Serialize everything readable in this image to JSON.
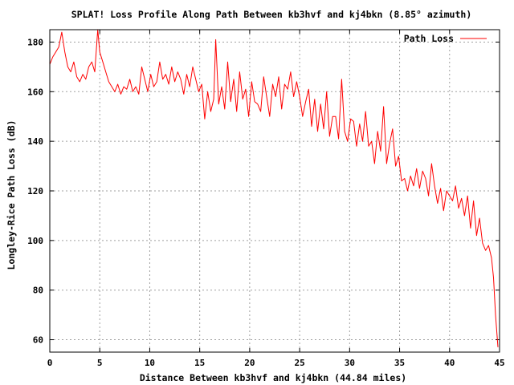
{
  "chart_data": {
    "type": "line",
    "title": "SPLAT! Loss Profile Along Path Between kb3hvf and kj4bkn (8.85° azimuth)",
    "xlabel": "Distance Between kb3hvf and kj4bkn (44.84 miles)",
    "ylabel": "Longley-Rice Path Loss (dB)",
    "xlim": [
      0,
      45
    ],
    "ylim": [
      55,
      185
    ],
    "xticks": [
      0,
      5,
      10,
      15,
      20,
      25,
      30,
      35,
      40,
      45
    ],
    "yticks": [
      60,
      80,
      100,
      120,
      140,
      160,
      180
    ],
    "grid": true,
    "legend_position": "top-right",
    "series": [
      {
        "name": "Path Loss",
        "color": "#ff0000",
        "x": [
          0,
          0.3,
          0.6,
          0.9,
          1.2,
          1.5,
          1.8,
          2.1,
          2.4,
          2.7,
          3.0,
          3.3,
          3.6,
          3.9,
          4.2,
          4.5,
          4.8,
          5.0,
          5.3,
          5.6,
          5.9,
          6.2,
          6.5,
          6.8,
          7.1,
          7.4,
          7.7,
          8.0,
          8.3,
          8.6,
          8.9,
          9.2,
          9.5,
          9.8,
          10.1,
          10.4,
          10.7,
          11.0,
          11.3,
          11.6,
          11.9,
          12.2,
          12.5,
          12.8,
          13.1,
          13.4,
          13.7,
          14.0,
          14.3,
          14.6,
          14.9,
          15.2,
          15.5,
          15.8,
          16.1,
          16.4,
          16.6,
          16.9,
          17.2,
          17.5,
          17.8,
          18.1,
          18.4,
          18.7,
          19.0,
          19.3,
          19.6,
          19.9,
          20.2,
          20.5,
          20.8,
          21.1,
          21.4,
          21.7,
          22.0,
          22.3,
          22.6,
          22.9,
          23.2,
          23.5,
          23.8,
          24.1,
          24.4,
          24.7,
          25.0,
          25.3,
          25.6,
          25.9,
          26.2,
          26.5,
          26.8,
          27.1,
          27.4,
          27.7,
          28.0,
          28.3,
          28.6,
          28.9,
          29.2,
          29.5,
          29.8,
          30.1,
          30.4,
          30.7,
          31.0,
          31.3,
          31.6,
          31.9,
          32.2,
          32.5,
          32.8,
          33.1,
          33.4,
          33.7,
          34.0,
          34.3,
          34.6,
          34.9,
          35.2,
          35.5,
          35.8,
          36.1,
          36.4,
          36.7,
          37.0,
          37.3,
          37.6,
          37.9,
          38.2,
          38.5,
          38.8,
          39.1,
          39.4,
          39.7,
          40.0,
          40.3,
          40.6,
          40.9,
          41.2,
          41.5,
          41.8,
          42.1,
          42.4,
          42.7,
          43.0,
          43.3,
          43.6,
          43.9,
          44.2,
          44.4,
          44.6,
          44.84
        ],
        "values": [
          171,
          174,
          176,
          178,
          184,
          176,
          170,
          168,
          172,
          166,
          164,
          167,
          165,
          170,
          172,
          168,
          185,
          176,
          172,
          168,
          164,
          162,
          160,
          163,
          159,
          162,
          161,
          165,
          160,
          162,
          159,
          170,
          165,
          160,
          167,
          162,
          164,
          172,
          165,
          167,
          163,
          170,
          164,
          168,
          165,
          159,
          167,
          162,
          170,
          165,
          160,
          163,
          149,
          160,
          152,
          157,
          181,
          155,
          162,
          153,
          172,
          156,
          165,
          152,
          168,
          157,
          161,
          150,
          164,
          156,
          155,
          152,
          166,
          158,
          150,
          163,
          158,
          166,
          153,
          163,
          161,
          168,
          158,
          164,
          158,
          150,
          156,
          161,
          146,
          157,
          144,
          155,
          145,
          160,
          142,
          150,
          150,
          141,
          165,
          144,
          140,
          149,
          148,
          138,
          147,
          140,
          152,
          138,
          140,
          131,
          144,
          136,
          154,
          131,
          139,
          145,
          130,
          134,
          124,
          125,
          120,
          126,
          122,
          129,
          121,
          128,
          125,
          118,
          131,
          122,
          115,
          121,
          112,
          120,
          118,
          116,
          122,
          113,
          117,
          110,
          118,
          105,
          116,
          102,
          109,
          99,
          96,
          98,
          93,
          85,
          70,
          57
        ]
      }
    ]
  }
}
